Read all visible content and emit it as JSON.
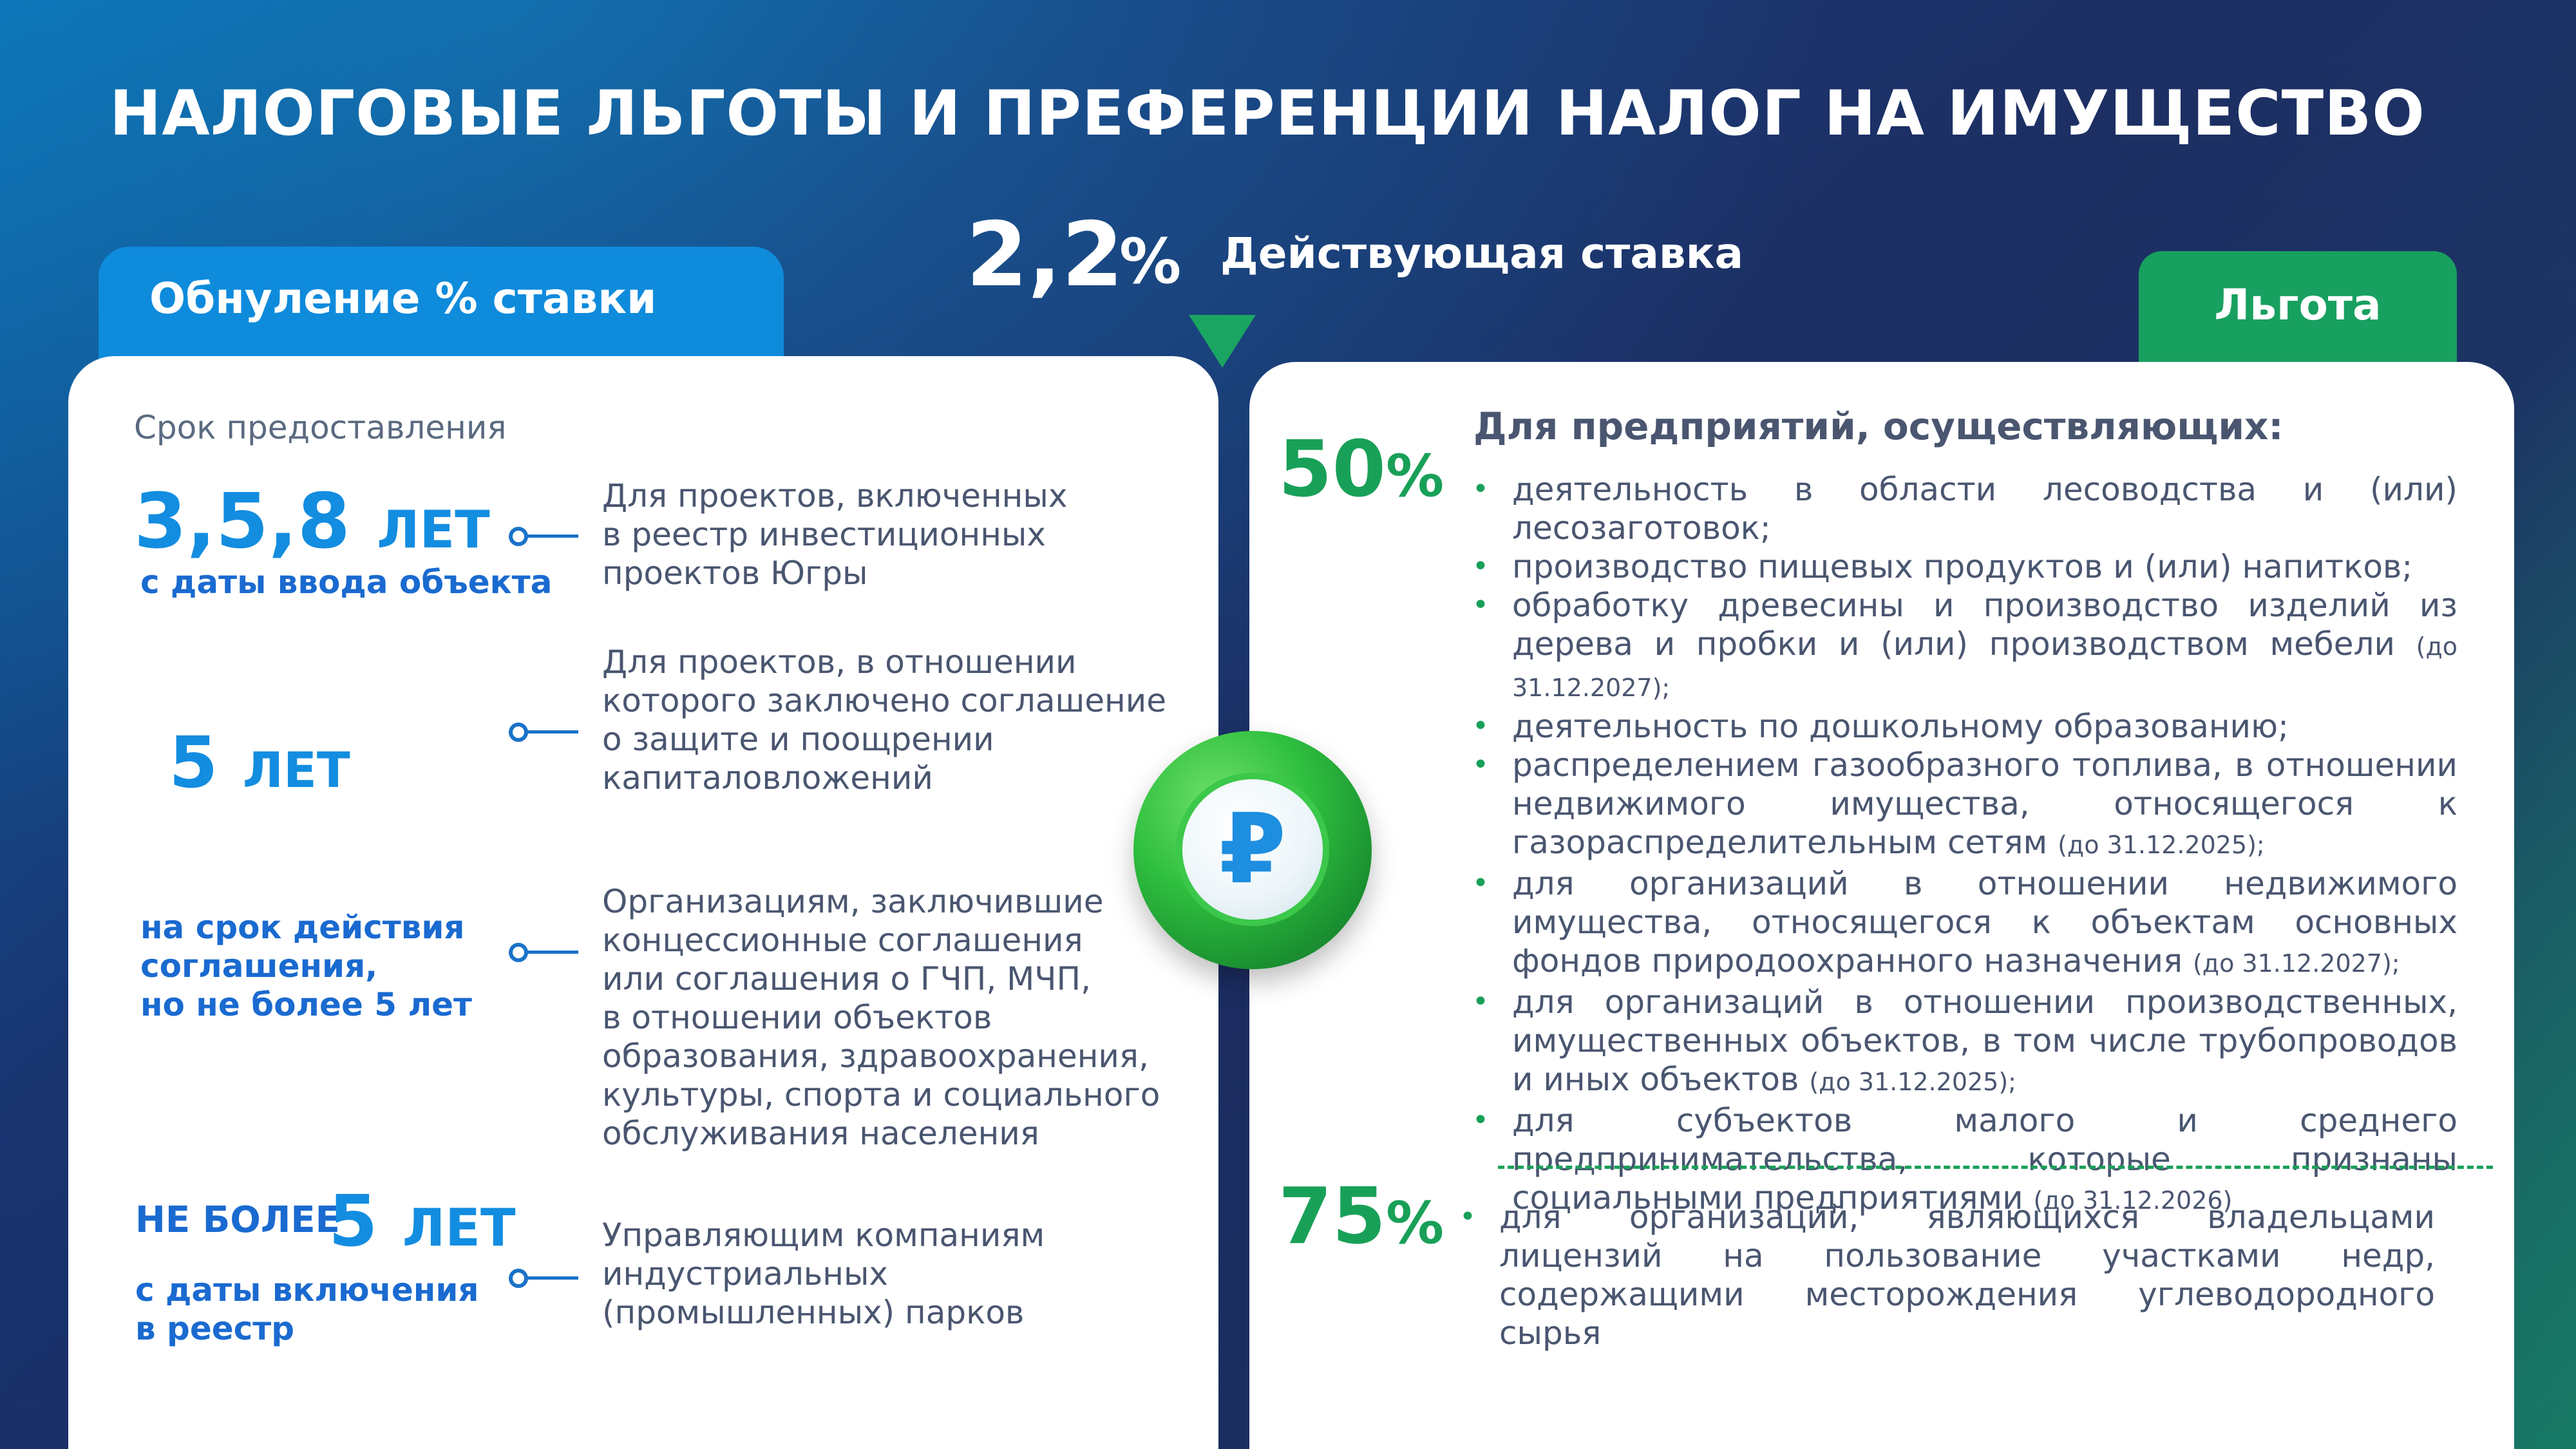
{
  "title": "НАЛОГОВЫЕ ЛЬГОТЫ И ПРЕФЕРЕНЦИИ НАЛОГ НА ИМУЩЕСТВО",
  "rate": {
    "value": "2,2",
    "percent": "%",
    "label": "Действующая ставка"
  },
  "left_tab": "Обнуление % ставки",
  "right_tab": "Льгота",
  "left": {
    "caption": "Срок предоставления",
    "items": [
      {
        "term_big": "3,5,8",
        "term_unit": "ЛЕТ",
        "term_sub": "с даты ввода объекта",
        "desc": [
          "Для проектов, включенных",
          "в реестр инвестиционных",
          "проектов Югры"
        ]
      },
      {
        "term_big": "5",
        "term_unit": "ЛЕТ",
        "desc": [
          "Для проектов, в отношении",
          "которого заключено соглашение",
          "о защите и поощрении",
          "капиталовложений"
        ]
      },
      {
        "term_lines": [
          "на срок действия",
          "соглашения,",
          "но не более 5 лет"
        ],
        "desc": [
          "Организациям, заключившие",
          "концессионные соглашения",
          "или соглашения о ГЧП, МЧП,",
          "в отношении объектов",
          "образования, здравоохранения,",
          "культуры, спорта и социального",
          "обслуживания населения"
        ]
      },
      {
        "term_prefix": "НЕ БОЛЕЕ",
        "term_big": "5",
        "term_unit": "ЛЕТ",
        "term_sub_lines": [
          "с даты включения",
          "в реестр"
        ],
        "desc": [
          "Управляющим компаниям",
          "индустриальных",
          "(промышленных) парков"
        ]
      }
    ]
  },
  "right": {
    "pct50": "50",
    "pct75": "75",
    "pct_sign": "%",
    "heading": "Для предприятий, осуществляющих:",
    "bullets": [
      {
        "text": "деятельность в области лесоводства и (или) лесозаготовок;",
        "note": ""
      },
      {
        "text": "производство пищевых продуктов и (или) напитков;",
        "note": ""
      },
      {
        "text": "обработку древесины и производство изделий из дерева и пробки и (или) производством мебели",
        "note": "(до 31.12.2027);"
      },
      {
        "text": "деятельность по дошкольному образованию;",
        "note": ""
      },
      {
        "text": "распределением газообразного топлива, в отношении недвижимого имущества, относящегося к газораспределительным сетям",
        "note": "(до 31.12.2025);"
      },
      {
        "text": "для организаций в отношении недвижимого имущества, относящегося к объектам основных фондов природоохранного назначения",
        "note": "(до 31.12.2027);"
      },
      {
        "text": "для организаций в отношении производственных, имущественных объектов, в том числе трубопроводов и иных объектов",
        "note": "(до 31.12.2025);"
      },
      {
        "text": "для субъектов малого и среднего предпринимательства, которые признаны социальными предприятиями",
        "note": "(до 31.12.2026)"
      }
    ],
    "bullet75": "для организаций, являющихся владельцами лицензий на пользование участками недр, содержащими месторождения углеводородного сырья"
  },
  "coin_symbol": "₽",
  "colors": {
    "blue": "#138de0",
    "green": "#19a058",
    "text": "#4a5670"
  }
}
